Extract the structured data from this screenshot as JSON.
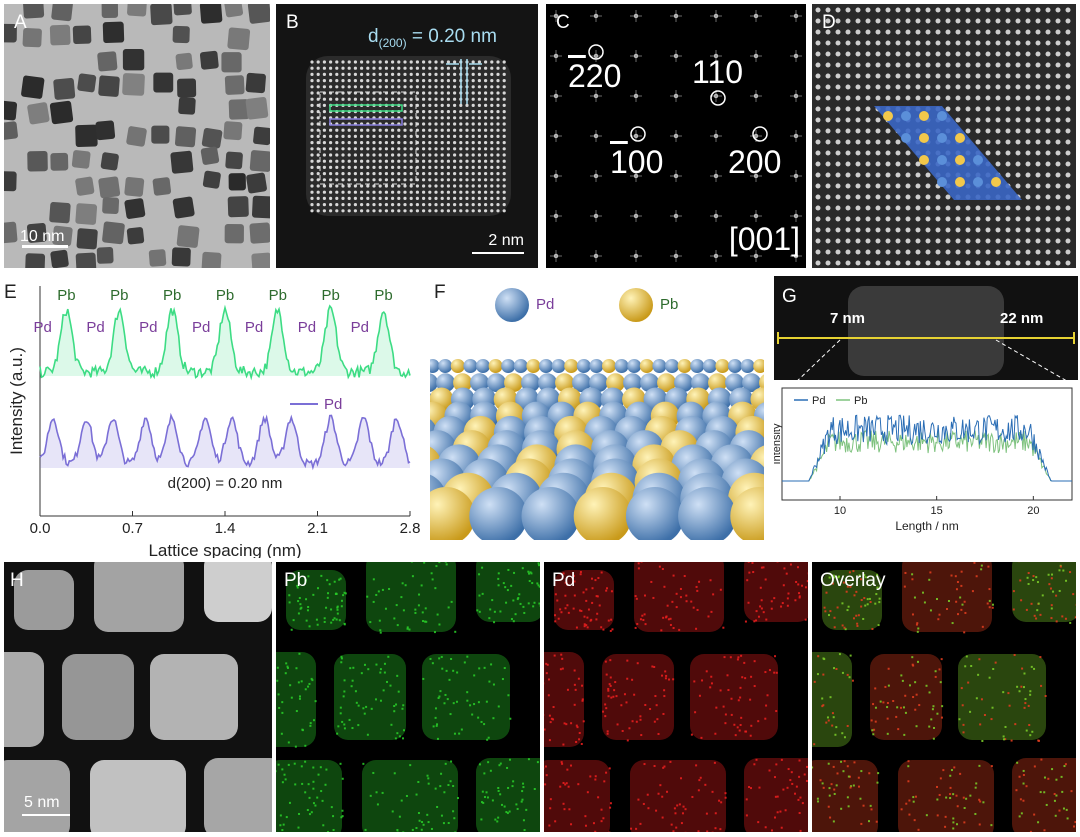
{
  "panels": {
    "A": {
      "label": "A",
      "scale_bar": "10 nm"
    },
    "B": {
      "label": "B",
      "d_prefix": "d",
      "d_sub": "(200)",
      "d_suffix": " = 0.20 nm",
      "scale_bar": "2 nm"
    },
    "C": {
      "label": "C",
      "spots": [
        "2̅ 20",
        "110",
        "1̅ 00",
        "200"
      ],
      "zone_axis": "[001]"
    },
    "D": {
      "label": "D"
    },
    "E": {
      "label": "E",
      "legend": "Pd",
      "annotation": "d(200) = 0.20 nm"
    },
    "F": {
      "label": "F",
      "legend_pd": "Pd",
      "legend_pb": "Pb"
    },
    "G": {
      "label": "G",
      "left_mark": "7 nm",
      "right_mark": "22 nm"
    },
    "H": {
      "label": "H",
      "scale_bar": "5 nm",
      "maps": [
        "Pb",
        "Pd",
        "Overlay"
      ]
    }
  },
  "chart_data": [
    {
      "type": "line",
      "panel": "E",
      "xlabel": "Lattice spacing (nm)",
      "ylabel": "Intensity (a.u.)",
      "xlim": [
        0.0,
        2.8
      ],
      "xticks": [
        "0.0",
        "0.7",
        "1.4",
        "2.1",
        "2.8"
      ],
      "top_labels_pb": [
        "Pb",
        "Pb",
        "Pb",
        "Pb",
        "Pb",
        "Pb",
        "Pb"
      ],
      "top_labels_pd": [
        "Pd",
        "Pd",
        "Pd",
        "Pd",
        "Pd",
        "Pd",
        "Pd"
      ],
      "series": [
        {
          "name": "",
          "color": "#3ddc84",
          "peaks": [
            0.2,
            0.6,
            1.0,
            1.4,
            1.8,
            2.2,
            2.6
          ]
        },
        {
          "name": "Pd",
          "color": "#7b6fd6",
          "peaks": [
            0.1,
            0.35,
            0.55,
            0.8,
            1.0,
            1.25,
            1.45,
            1.7,
            1.9,
            2.2,
            2.45,
            2.7
          ]
        }
      ]
    },
    {
      "type": "line",
      "panel": "G",
      "xlabel": "Length / nm",
      "ylabel": "Intensity",
      "xlim": [
        7,
        22
      ],
      "xticks": [
        "10",
        "15",
        "20"
      ],
      "series": [
        {
          "name": "Pd",
          "color": "#2a6db5"
        },
        {
          "name": "Pb",
          "color": "#7ec27e"
        }
      ]
    }
  ]
}
